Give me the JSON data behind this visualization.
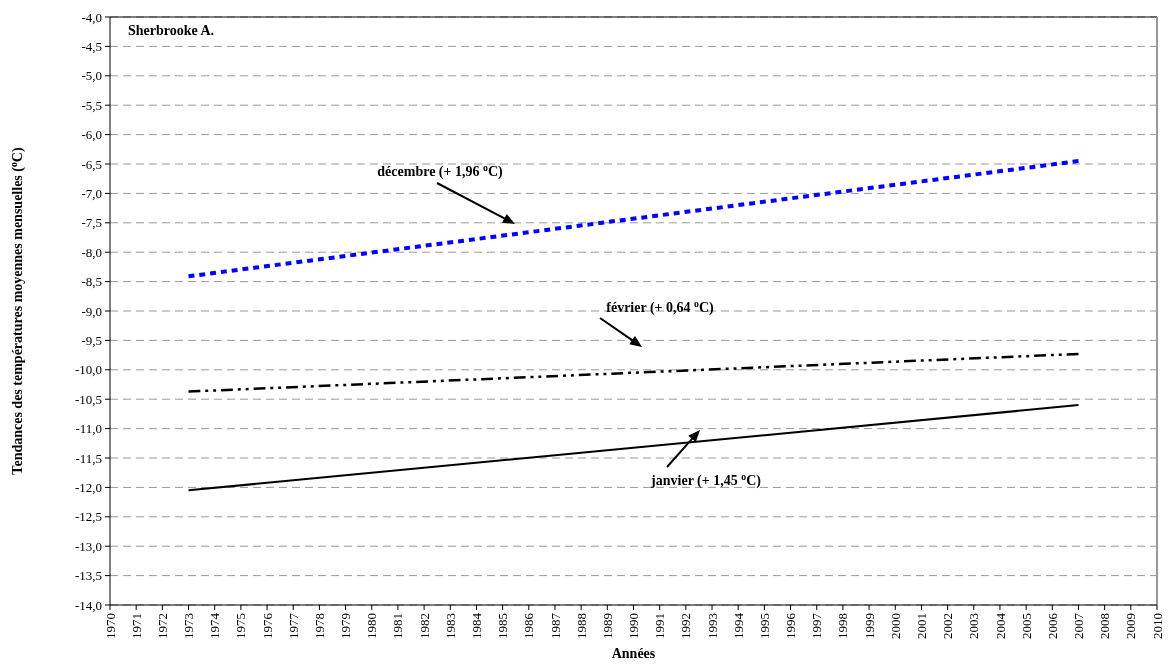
{
  "chart_data": {
    "type": "line",
    "title": "Sherbrooke A.",
    "xlabel": "Années",
    "ylabel": "Tendances des températures moyennes mensuelles ($^{o}$C)",
    "xlim": [
      1970,
      2010
    ],
    "xticks": [
      1970,
      1971,
      1972,
      1973,
      1974,
      1975,
      1976,
      1977,
      1978,
      1979,
      1980,
      1981,
      1982,
      1983,
      1984,
      1985,
      1986,
      1987,
      1988,
      1989,
      1990,
      1991,
      1992,
      1993,
      1994,
      1995,
      1996,
      1997,
      1998,
      1999,
      2000,
      2001,
      2002,
      2003,
      2004,
      2005,
      2006,
      2007,
      2008,
      2009,
      2010
    ],
    "ylim": [
      -14,
      -4
    ],
    "yticks": [
      {
        "value": -4,
        "label": "-4,0"
      },
      {
        "value": -4.5,
        "label": "-4,5"
      },
      {
        "value": -5,
        "label": "-5,0"
      },
      {
        "value": -5.5,
        "label": "-5,5"
      },
      {
        "value": -6,
        "label": "-6,0"
      },
      {
        "value": -6.5,
        "label": "-6,5"
      },
      {
        "value": -7,
        "label": "-7,0"
      },
      {
        "value": -7.5,
        "label": "-7,5"
      },
      {
        "value": -8,
        "label": "-8,0"
      },
      {
        "value": -8.5,
        "label": "-8,5"
      },
      {
        "value": -9,
        "label": "-9,0"
      },
      {
        "value": -9.5,
        "label": "-9,5"
      },
      {
        "value": -10,
        "label": "-10,0"
      },
      {
        "value": -10.5,
        "label": "-10,5"
      },
      {
        "value": -11,
        "label": "-11,0"
      },
      {
        "value": -11.5,
        "label": "-11,5"
      },
      {
        "value": -12,
        "label": "-12,0"
      },
      {
        "value": -12.5,
        "label": "-12,5"
      },
      {
        "value": -13,
        "label": "-13,0"
      },
      {
        "value": -13.5,
        "label": "-13,5"
      },
      {
        "value": -14,
        "label": "-14,0"
      }
    ],
    "grid": "y",
    "marker": "none",
    "x": [
      1973,
      2007
    ],
    "series": [
      {
        "color": "#0000ff",
        "values": [
          -8.41,
          -6.45
        ],
        "line_style": "dotted"
      },
      {
        "color": "#000000",
        "values": [
          -10.37,
          -9.73
        ],
        "line_style": "dashed"
      },
      {
        "color": "#000000",
        "values": [
          -12.05,
          -10.6
        ],
        "line_style": "solid"
      }
    ],
    "annotations": [
      "décembre (+ 1,96 $^{o}$C)",
      "février (+ 0,64 $^{o}$C)",
      "janvier (+ 1,45 $^{o}$C)"
    ]
  }
}
